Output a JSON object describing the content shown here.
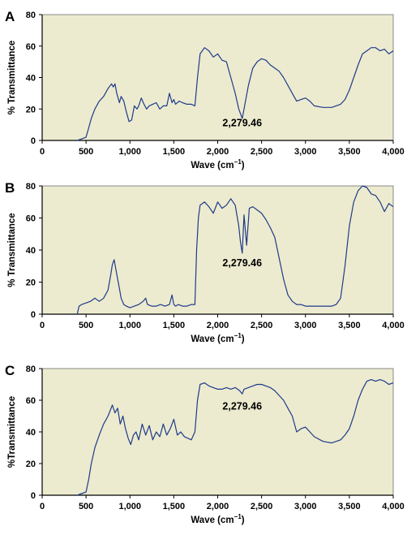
{
  "chart_data": [
    {
      "type": "line",
      "panel_label": "A",
      "title": "",
      "xlabel": "Wave (cm",
      "xlabel_sup": "−1",
      "xlabel_close": ")",
      "ylabel": "% Transmittance",
      "xlim": [
        0,
        4000
      ],
      "ylim": [
        0,
        80
      ],
      "xticks": [
        0,
        500,
        1000,
        1500,
        2000,
        2500,
        3000,
        3500,
        4000
      ],
      "xtick_labels": [
        "0",
        "500",
        "1,000",
        "1,500",
        "2,000",
        "2,500",
        "3,000",
        "3,500",
        "4,000"
      ],
      "yticks": [
        0,
        20,
        40,
        60,
        80
      ],
      "ytick_labels": [
        "0",
        "20",
        "40",
        "60",
        "80"
      ],
      "grid": false,
      "background": "#ECEBCF",
      "line_color": "#1F3A8A",
      "annotation": {
        "text": "2,279.46",
        "x": 2279.46,
        "y": 9
      },
      "series": [
        {
          "x": [
            400,
            450,
            500,
            530,
            560,
            600,
            650,
            700,
            750,
            790,
            810,
            830,
            850,
            880,
            900,
            930,
            960,
            990,
            1020,
            1050,
            1080,
            1100,
            1130,
            1160,
            1190,
            1220,
            1260,
            1300,
            1340,
            1380,
            1420,
            1450,
            1480,
            1500,
            1520,
            1560,
            1600,
            1650,
            1700,
            1740,
            1770,
            1800,
            1850,
            1900,
            1950,
            2000,
            2050,
            2100,
            2150,
            2200,
            2240,
            2279.46,
            2300,
            2350,
            2400,
            2450,
            2500,
            2550,
            2600,
            2650,
            2700,
            2750,
            2800,
            2850,
            2900,
            2950,
            3000,
            3050,
            3100,
            3200,
            3300,
            3400,
            3450,
            3500,
            3550,
            3600,
            3650,
            3700,
            3750,
            3800,
            3850,
            3900,
            3950,
            4000
          ],
          "y": [
            0,
            1,
            2,
            8,
            14,
            20,
            25,
            28,
            33,
            36,
            34,
            36,
            30,
            24,
            28,
            25,
            18,
            12,
            13,
            22,
            20,
            22,
            27,
            23,
            20,
            22,
            23,
            24,
            20,
            22,
            22,
            30,
            24,
            26,
            23,
            25,
            24,
            23,
            23,
            22,
            40,
            55,
            59,
            57,
            53,
            55,
            51,
            50,
            40,
            30,
            20,
            14,
            20,
            35,
            46,
            50,
            52,
            51,
            48,
            46,
            44,
            40,
            35,
            30,
            25,
            26,
            27,
            25,
            22,
            21,
            21,
            23,
            26,
            32,
            40,
            48,
            55,
            57,
            59,
            59,
            57,
            58,
            55,
            57
          ]
        }
      ]
    },
    {
      "type": "line",
      "panel_label": "B",
      "title": "",
      "xlabel": "Wave (cm",
      "xlabel_sup": "−1",
      "xlabel_close": ")",
      "ylabel": "% Transmittance",
      "xlim": [
        0,
        4000
      ],
      "ylim": [
        0,
        80
      ],
      "xticks": [
        0,
        500,
        1000,
        1500,
        2000,
        2500,
        3000,
        3500,
        4000
      ],
      "xtick_labels": [
        "0",
        "500",
        "1,000",
        "1,500",
        "2,000",
        "2,500",
        "3,000",
        "3,500",
        "4,000"
      ],
      "yticks": [
        0,
        20,
        40,
        60,
        80
      ],
      "ytick_labels": [
        "0",
        "20",
        "40",
        "60",
        "80"
      ],
      "grid": false,
      "background": "#ECEBCF",
      "line_color": "#1F3A8A",
      "annotation": {
        "text": "2,279.46",
        "x": 2279.46,
        "y": 30
      },
      "series": [
        {
          "x": [
            400,
            420,
            450,
            500,
            550,
            600,
            650,
            700,
            750,
            780,
            800,
            820,
            840,
            860,
            880,
            900,
            930,
            960,
            1000,
            1050,
            1100,
            1150,
            1180,
            1200,
            1250,
            1300,
            1350,
            1400,
            1450,
            1480,
            1500,
            1520,
            1550,
            1600,
            1650,
            1700,
            1740,
            1760,
            1780,
            1800,
            1850,
            1900,
            1950,
            2000,
            2050,
            2100,
            2150,
            2200,
            2240,
            2260,
            2279.46,
            2300,
            2330,
            2360,
            2400,
            2450,
            2500,
            2550,
            2600,
            2650,
            2700,
            2750,
            2800,
            2850,
            2900,
            2950,
            3000,
            3100,
            3200,
            3300,
            3350,
            3400,
            3450,
            3500,
            3550,
            3600,
            3650,
            3700,
            3750,
            3800,
            3850,
            3900,
            3950,
            4000
          ],
          "y": [
            0,
            5,
            6,
            7,
            8,
            10,
            8,
            10,
            15,
            24,
            31,
            34,
            28,
            22,
            16,
            10,
            6,
            5,
            4,
            5,
            6,
            8,
            10,
            6,
            5,
            5,
            6,
            5,
            6,
            12,
            6,
            5,
            6,
            5,
            5,
            6,
            6,
            40,
            60,
            68,
            70,
            67,
            63,
            70,
            66,
            68,
            72,
            68,
            55,
            45,
            38,
            62,
            43,
            66,
            67,
            65,
            63,
            59,
            54,
            48,
            35,
            22,
            12,
            8,
            6,
            6,
            5,
            5,
            5,
            5,
            6,
            10,
            30,
            55,
            70,
            77,
            80,
            79,
            75,
            74,
            70,
            64,
            69,
            67
          ]
        }
      ]
    },
    {
      "type": "line",
      "panel_label": "C",
      "title": "",
      "xlabel": "Wave (cm",
      "xlabel_sup": "−1",
      "xlabel_close": ")",
      "ylabel": "%Transmittance",
      "xlim": [
        0,
        4000
      ],
      "ylim": [
        0,
        80
      ],
      "xticks": [
        0,
        500,
        1000,
        1500,
        2000,
        2500,
        3000,
        3500,
        4000
      ],
      "xtick_labels": [
        "0",
        "500",
        "1,000",
        "1,500",
        "2,000",
        "2,500",
        "3,000",
        "3,500",
        "4,000"
      ],
      "yticks": [
        0,
        20,
        40,
        60,
        80
      ],
      "ytick_labels": [
        "0",
        "20",
        "40",
        "60",
        "80"
      ],
      "grid": false,
      "background": "#ECEBCF",
      "line_color": "#1F3A8A",
      "annotation": {
        "text": "2,279.46",
        "x": 2279.46,
        "y": 54
      },
      "series": [
        {
          "x": [
            400,
            450,
            500,
            530,
            560,
            600,
            650,
            700,
            750,
            800,
            830,
            860,
            890,
            920,
            950,
            980,
            1010,
            1040,
            1070,
            1100,
            1140,
            1180,
            1220,
            1260,
            1300,
            1340,
            1380,
            1420,
            1460,
            1500,
            1540,
            1580,
            1620,
            1660,
            1700,
            1740,
            1770,
            1800,
            1850,
            1900,
            1950,
            2000,
            2050,
            2100,
            2150,
            2200,
            2250,
            2279.46,
            2300,
            2350,
            2400,
            2450,
            2500,
            2550,
            2600,
            2650,
            2700,
            2750,
            2800,
            2850,
            2900,
            2950,
            3000,
            3050,
            3100,
            3200,
            3300,
            3400,
            3450,
            3500,
            3550,
            3600,
            3650,
            3700,
            3750,
            3800,
            3850,
            3900,
            3950,
            4000
          ],
          "y": [
            0,
            1,
            2,
            10,
            20,
            30,
            38,
            45,
            50,
            57,
            52,
            55,
            45,
            50,
            42,
            36,
            32,
            38,
            40,
            35,
            45,
            38,
            44,
            35,
            40,
            37,
            45,
            38,
            42,
            48,
            38,
            40,
            37,
            36,
            35,
            40,
            60,
            70,
            71,
            69,
            68,
            67,
            67,
            68,
            67,
            68,
            66,
            64,
            67,
            68,
            69,
            70,
            70,
            69,
            68,
            66,
            63,
            60,
            55,
            50,
            40,
            42,
            43,
            40,
            37,
            34,
            33,
            35,
            38,
            42,
            50,
            60,
            67,
            72,
            73,
            72,
            73,
            72,
            70,
            71
          ]
        }
      ]
    }
  ]
}
